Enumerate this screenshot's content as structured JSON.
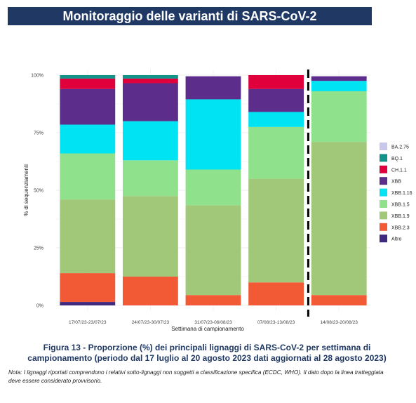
{
  "header": {
    "title": "Monitoraggio delle varianti di SARS-CoV-2"
  },
  "chart_data": {
    "type": "bar",
    "stacked": true,
    "xlabel": "Settimana di campionamento",
    "ylabel": "% di sequenziamenti",
    "ylim": [
      0,
      100
    ],
    "yticks": [
      "0%",
      "25%",
      "50%",
      "75%",
      "100%"
    ],
    "categories": [
      "17/07/23-23/07/23",
      "24/07/23-30/07/23",
      "31/07/23-06/08/23",
      "07/08/23-13/08/23",
      "14/08/23-20/08/23"
    ],
    "series": [
      {
        "name": "Altro",
        "color": "#3f2a80",
        "values": [
          1.5,
          0,
          0,
          0,
          0
        ]
      },
      {
        "name": "XBB.2.3",
        "color": "#f25a35",
        "values": [
          12.5,
          12.5,
          4.5,
          10,
          4.5
        ]
      },
      {
        "name": "XBB.1.9",
        "color": "#a0c878",
        "values": [
          32,
          35,
          39,
          45,
          66.5
        ]
      },
      {
        "name": "XBB.1.5",
        "color": "#90e18c",
        "values": [
          20,
          15.5,
          15.5,
          22.5,
          22
        ]
      },
      {
        "name": "XBB.1.16",
        "color": "#00e3f2",
        "values": [
          12.5,
          17,
          30.5,
          6.5,
          4.5
        ]
      },
      {
        "name": "XBB",
        "color": "#5c2d8a",
        "values": [
          15.5,
          16.5,
          10,
          10,
          2
        ]
      },
      {
        "name": "CH.1.1",
        "color": "#e0003c",
        "values": [
          4.5,
          2,
          0,
          6,
          0
        ]
      },
      {
        "name": "BQ.1",
        "color": "#13938a",
        "values": [
          1.5,
          1.5,
          0,
          0,
          0
        ]
      },
      {
        "name": "BA.2.75",
        "color": "#c8c8ea",
        "values": [
          0,
          0,
          0,
          0,
          0
        ]
      }
    ],
    "legend_order": [
      "BA.2.75",
      "BQ.1",
      "CH.1.1",
      "XBB",
      "XBB.1.16",
      "XBB.1.5",
      "XBB.1.9",
      "XBB.2.3",
      "Altro"
    ],
    "legend_position": "right",
    "grid": true,
    "dashed_separator_after_category": 3
  },
  "caption": {
    "line1": "Figura 13 - Proporzione (%) dei principali lignaggi di SARS-CoV-2 per settimana di",
    "line2": "campionamento (periodo dal 17 luglio al 20 agosto 2023 dati aggiornati al 28 agosto 2023)"
  },
  "note": {
    "line1": "Nota: I lignaggi riportati comprendono i relativi sotto-lignaggi non soggetti a classificazione specifica (ECDC, WHO). Il dato dopo la linea tratteggiata",
    "line2": "deve essere considerato provvisorio."
  }
}
